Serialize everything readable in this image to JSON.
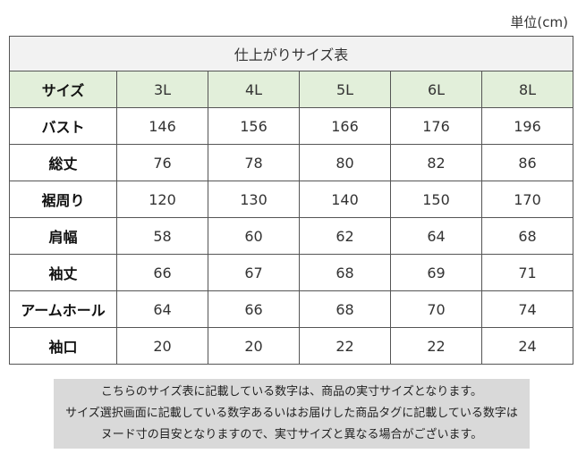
{
  "unit_label": "単位(cm)",
  "table": {
    "title": "仕上がりサイズ表",
    "corner_label": "サイズ",
    "sizes": [
      "3L",
      "4L",
      "5L",
      "6L",
      "8L"
    ],
    "rows": [
      {
        "label": "バスト",
        "values": [
          "146",
          "156",
          "166",
          "176",
          "196"
        ]
      },
      {
        "label": "総丈",
        "values": [
          "76",
          "78",
          "80",
          "82",
          "86"
        ]
      },
      {
        "label": "裾周り",
        "values": [
          "120",
          "130",
          "140",
          "150",
          "170"
        ]
      },
      {
        "label": "肩幅",
        "values": [
          "58",
          "60",
          "62",
          "64",
          "68"
        ]
      },
      {
        "label": "袖丈",
        "values": [
          "66",
          "67",
          "68",
          "69",
          "71"
        ]
      },
      {
        "label": "アームホール",
        "values": [
          "64",
          "66",
          "68",
          "70",
          "74"
        ]
      },
      {
        "label": "袖口",
        "values": [
          "20",
          "20",
          "22",
          "22",
          "24"
        ]
      }
    ]
  },
  "note": {
    "lines": [
      "こちらのサイズ表に記載している数字は、商品の実寸サイズとなります。",
      "サイズ選択画面に記載している数字あるいはお届けした商品タグに記載している数字は",
      "ヌード寸の目安となりますので、実寸サイズと異なる場合がございます。"
    ]
  }
}
